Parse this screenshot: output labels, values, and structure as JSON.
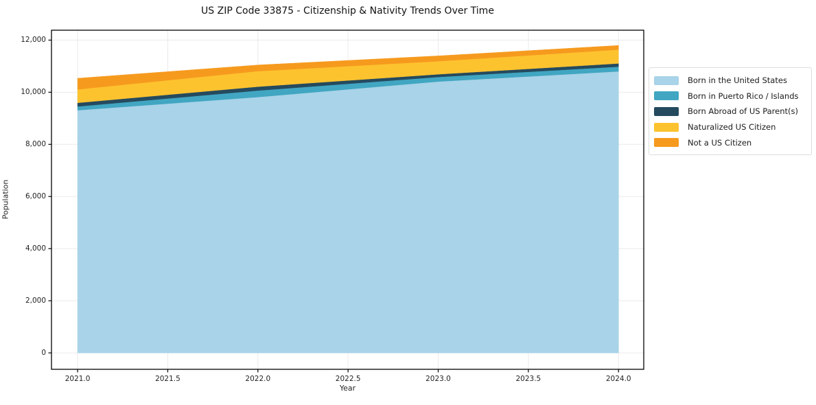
{
  "title": "US ZIP Code 33875 - Citizenship & Nativity Trends Over Time",
  "axes": {
    "x_label": "Year",
    "y_label": "Population",
    "x_tick_labels": [
      "2021.0",
      "2021.5",
      "2022.0",
      "2022.5",
      "2023.0",
      "2023.5",
      "2024.0"
    ],
    "y_tick_labels": [
      "0",
      "2,000",
      "4,000",
      "6,000",
      "8,000",
      "10,000",
      "12,000"
    ]
  },
  "chart_data": {
    "type": "area",
    "stacked": true,
    "title": "US ZIP Code 33875 - Citizenship & Nativity Trends Over Time",
    "xlabel": "Year",
    "ylabel": "Population",
    "x": [
      2021,
      2022,
      2023,
      2024
    ],
    "series": [
      {
        "name": "Born in the United States",
        "color": "#a8d3e8",
        "values": [
          9310,
          9815,
          10410,
          10800
        ]
      },
      {
        "name": "Born in Puerto Rico / Islands",
        "color": "#41a6c2",
        "values": [
          145,
          250,
          175,
          180
        ]
      },
      {
        "name": "Born Abroad of US Parent(s)",
        "color": "#254a5e",
        "values": [
          140,
          150,
          105,
          125
        ]
      },
      {
        "name": "Naturalized US Citizen",
        "color": "#fdc32f",
        "values": [
          515,
          595,
          500,
          530
        ]
      },
      {
        "name": "Not a US Citizen",
        "color": "#f69a1e",
        "values": [
          425,
          235,
          205,
          160
        ]
      }
    ],
    "stack_totals": [
      10535,
      11045,
      11395,
      11795
    ],
    "x_tick_values": [
      2021,
      2021.5,
      2022,
      2022.5,
      2023,
      2023.5,
      2024
    ],
    "y_tick_values": [
      0,
      2000,
      4000,
      6000,
      8000,
      10000,
      12000
    ],
    "xlim": [
      2020.855,
      2024.14
    ],
    "ylim": [
      -630,
      12380
    ],
    "grid": true,
    "grid_color": "#eaeaea",
    "frame_color": "#000000",
    "legend_position": "right outside"
  }
}
